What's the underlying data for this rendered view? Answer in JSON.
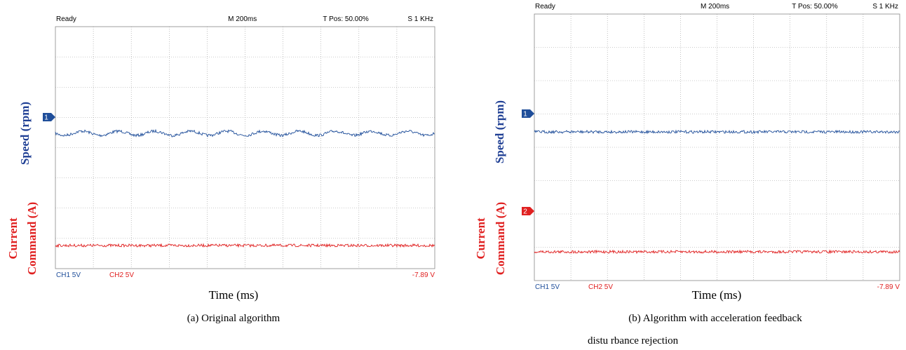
{
  "panels": [
    {
      "status": "Ready",
      "timebase": "M 200ms",
      "trigger_pos": "T Pos: 50.00%",
      "sample_rate": "S 1 KHz",
      "ch1_label": "CH1  5V",
      "ch2_label": "CH2  5V",
      "readout": "-7.89 V",
      "markers": [
        "1"
      ],
      "y_label_speed": "Speed (rpm)",
      "y_label_current": [
        "Current",
        "Command (A)"
      ],
      "x_label": "Time (ms)",
      "caption": [
        "(a) Original algorithm"
      ]
    },
    {
      "status": "Ready",
      "timebase": "M 200ms",
      "trigger_pos": "T Pos: 50.00%",
      "sample_rate": "S 1 KHz",
      "ch1_label": "CH1  5V",
      "ch2_label": "CH2  5V",
      "readout": "-7.89 V",
      "markers": [
        "1",
        "2"
      ],
      "y_label_speed": "Speed (rpm)",
      "y_label_current": [
        "Current",
        "Command (A)"
      ],
      "x_label": "Time (ms)",
      "caption": [
        "(b) Algorithm with acceleration feedback",
        "distu  rbance rejection"
      ]
    }
  ]
}
